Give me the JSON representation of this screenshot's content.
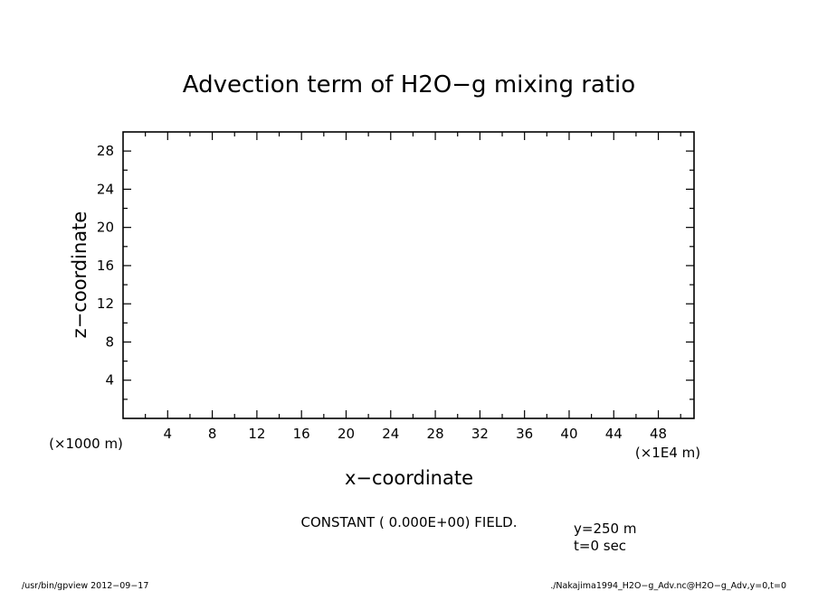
{
  "chart_data": {
    "type": "heatmap",
    "title": "Advection term of H2O−g mixing ratio",
    "xlabel": "x−coordinate",
    "ylabel": "z−coordinate",
    "x_unit_note": "(×1E4 m)",
    "y_unit_note": "(×1000 m)",
    "xlim": [
      0,
      51.2
    ],
    "ylim": [
      0,
      30
    ],
    "x_ticks": [
      "4",
      "8",
      "12",
      "16",
      "20",
      "24",
      "28",
      "32",
      "36",
      "40",
      "44",
      "48"
    ],
    "y_ticks": [
      "4",
      "8",
      "12",
      "16",
      "20",
      "24",
      "28"
    ],
    "field_message": "CONSTANT ( 0.000E+00) FIELD.",
    "values": [],
    "grid": false,
    "legend": "none"
  },
  "slice_info": {
    "y": "y=250  m",
    "t": "t=0 sec"
  },
  "footer": {
    "program": "/usr/bin/gpview   2012−09−17",
    "source": "./Nakajima1994_H2O−g_Adv.nc@H2O−g_Adv,y=0,t=0"
  }
}
